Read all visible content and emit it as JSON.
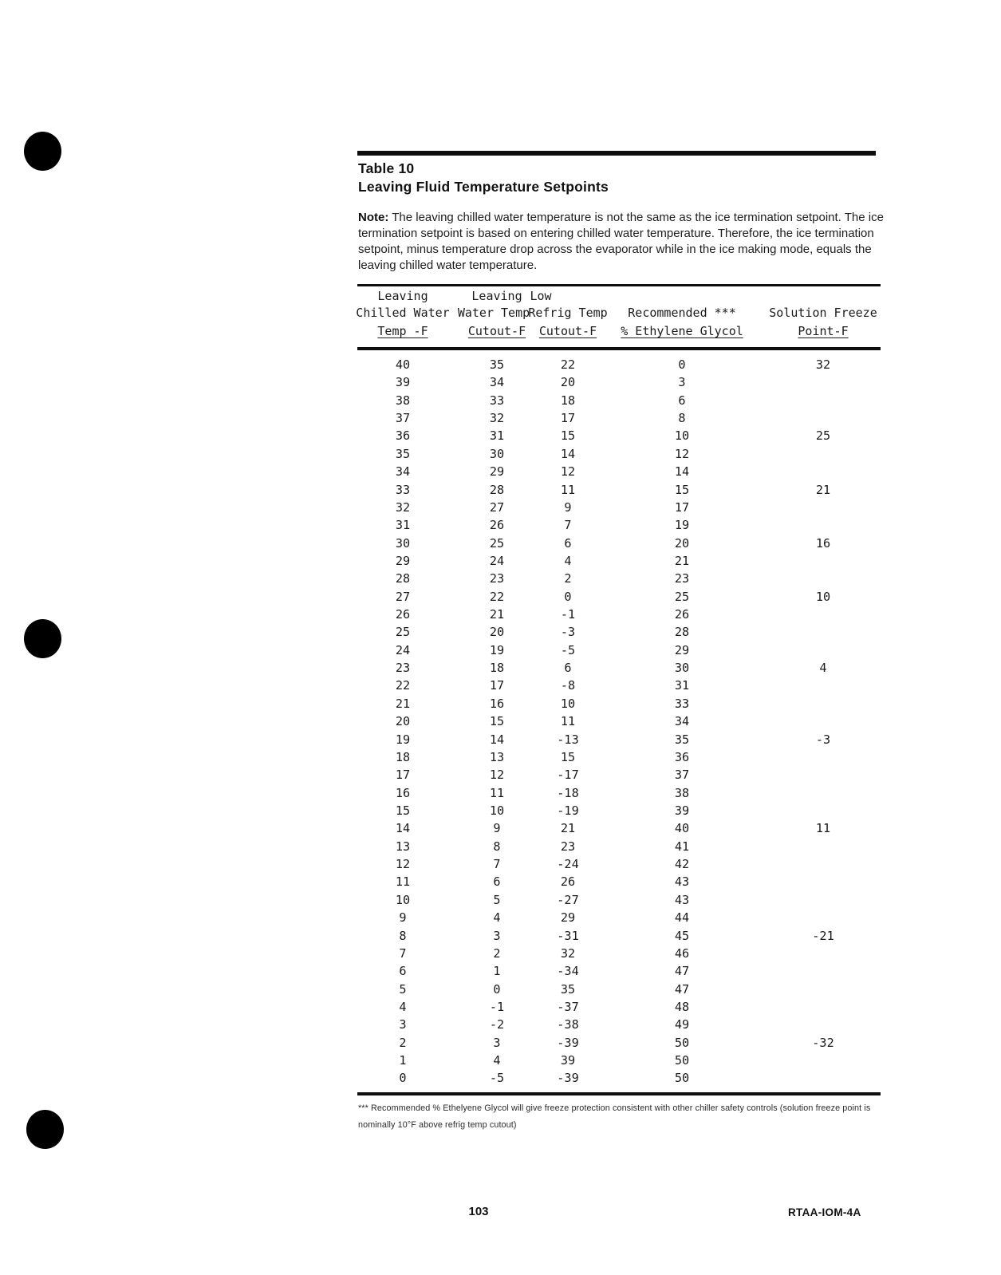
{
  "document": {
    "title_line1": "Table 10",
    "title_line2": "Leaving Fluid Temperature Setpoints",
    "note_label": "Note:",
    "note_text": " The leaving chilled water temperature is not the same as the ice termination setpoint.  The ice termination setpoint is based on entering chilled water temperature. Therefore, the ice termination setpoint, minus temperature drop across the evaporator while in the ice making mode, equals the leaving chilled water temperature."
  },
  "table": {
    "header": {
      "col1": {
        "line1": "Leaving",
        "line2": "Chilled Water",
        "line3": "Temp -F"
      },
      "col2": {
        "line1": "Leaving",
        "line2": "Water Temp",
        "line3": "Cutout-F"
      },
      "col3": {
        "line1": "Low",
        "line2": "Refrig Temp",
        "line3": "Cutout-F"
      },
      "col4": {
        "line2": "Recommended ***",
        "line3": "% Ethylene Glycol"
      },
      "col5": {
        "line2": "Solution Freeze",
        "line3": "Point-F"
      }
    },
    "rows": [
      [
        "40",
        "35",
        "22",
        "0",
        "32"
      ],
      [
        "39",
        "34",
        "20",
        "3",
        ""
      ],
      [
        "38",
        "33",
        "18",
        "6",
        ""
      ],
      [
        "37",
        "32",
        "17",
        "8",
        ""
      ],
      [
        "36",
        "31",
        "15",
        "10",
        "25"
      ],
      [
        "35",
        "30",
        "14",
        "12",
        ""
      ],
      [
        "34",
        "29",
        "12",
        "14",
        ""
      ],
      [
        "33",
        "28",
        "11",
        "15",
        "21"
      ],
      [
        "32",
        "27",
        "9",
        "17",
        ""
      ],
      [
        "31",
        "26",
        "7",
        "19",
        ""
      ],
      [
        "30",
        "25",
        "6",
        "20",
        "16"
      ],
      [
        "29",
        "24",
        "4",
        "21",
        ""
      ],
      [
        "28",
        "23",
        "2",
        "23",
        ""
      ],
      [
        "27",
        "22",
        "0",
        "25",
        "10"
      ],
      [
        "26",
        "21",
        "-1",
        "26",
        ""
      ],
      [
        "25",
        "20",
        "-3",
        "28",
        ""
      ],
      [
        "24",
        "19",
        "-5",
        "29",
        ""
      ],
      [
        "23",
        "18",
        "6",
        "30",
        "4"
      ],
      [
        "22",
        "17",
        "-8",
        "31",
        ""
      ],
      [
        "21",
        "16",
        "10",
        "33",
        ""
      ],
      [
        "20",
        "15",
        "11",
        "34",
        ""
      ],
      [
        "19",
        "14",
        "-13",
        "35",
        "-3"
      ],
      [
        "18",
        "13",
        "15",
        "36",
        ""
      ],
      [
        "17",
        "12",
        "-17",
        "37",
        ""
      ],
      [
        "16",
        "11",
        "-18",
        "38",
        ""
      ],
      [
        "15",
        "10",
        "-19",
        "39",
        ""
      ],
      [
        "14",
        "9",
        "21",
        "40",
        "11"
      ],
      [
        "13",
        "8",
        "23",
        "41",
        ""
      ],
      [
        "12",
        "7",
        "-24",
        "42",
        ""
      ],
      [
        "11",
        "6",
        "26",
        "43",
        ""
      ],
      [
        "10",
        "5",
        "-27",
        "43",
        ""
      ],
      [
        "9",
        "4",
        "29",
        "44",
        ""
      ],
      [
        "8",
        "3",
        "-31",
        "45",
        "-21"
      ],
      [
        "7",
        "2",
        "32",
        "46",
        ""
      ],
      [
        "6",
        "1",
        "-34",
        "47",
        ""
      ],
      [
        "5",
        "0",
        "35",
        "47",
        ""
      ],
      [
        "4",
        "-1",
        "-37",
        "48",
        ""
      ],
      [
        "3",
        "-2",
        "-38",
        "49",
        ""
      ],
      [
        "2",
        "3",
        "-39",
        "50",
        "-32"
      ],
      [
        "1",
        "4",
        "39",
        "50",
        ""
      ],
      [
        "0",
        "-5",
        "-39",
        "50",
        ""
      ]
    ]
  },
  "footnote": {
    "text": "*** Recommended % Ethelyene Glycol will give freeze protection consistent with other chiller safety controls (solution freeze point is nominally 10°F above refrig temp cutout)"
  },
  "footer": {
    "page_number": "103",
    "doc_code": "RTAA-IOM-4A"
  },
  "chart_data": {
    "type": "table",
    "columns": [
      "Leaving Chilled Water Temp -F",
      "Leaving Water Temp Cutout-F",
      "Low Refrig Temp Cutout-F",
      "Recommended *** % Ethylene Glycol",
      "Solution Freeze Point-F"
    ]
  }
}
